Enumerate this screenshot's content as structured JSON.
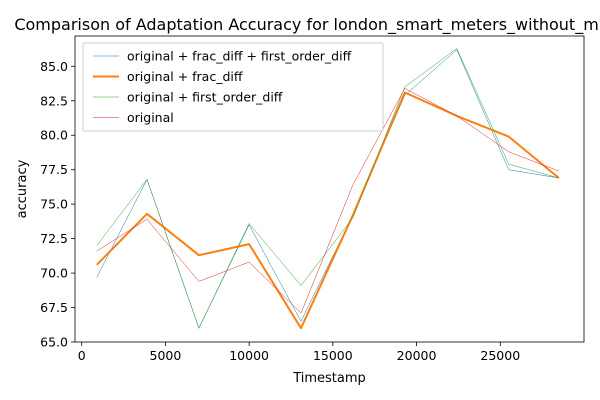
{
  "chart_data": {
    "type": "line",
    "title": "Comparison of Adaptation Accuracy for london_smart_meters_without_missing",
    "xlabel": "Timestamp",
    "ylabel": "accuracy",
    "xlim": [
      -400,
      30000
    ],
    "ylim": [
      65.0,
      87.2
    ],
    "xticks": [
      0,
      5000,
      10000,
      15000,
      20000,
      25000
    ],
    "yticks": [
      65.0,
      67.5,
      70.0,
      72.5,
      75.0,
      77.5,
      80.0,
      82.5,
      85.0
    ],
    "grid": false,
    "legend_position": "top-left",
    "x": [
      900,
      3900,
      7000,
      10000,
      13100,
      16200,
      19300,
      22400,
      25500,
      28500
    ],
    "series": [
      {
        "name": "original + frac_diff + first_order_diff",
        "color": "#1f77b4",
        "width": 0.5,
        "values": [
          69.7,
          76.8,
          66.0,
          73.5,
          66.5,
          74.2,
          82.9,
          86.2,
          77.5,
          76.9
        ]
      },
      {
        "name": "original + frac_diff",
        "color": "#ff7f0e",
        "width": 2,
        "values": [
          70.6,
          74.3,
          71.3,
          72.1,
          66.0,
          74.2,
          83.1,
          81.4,
          79.9,
          76.9
        ]
      },
      {
        "name": "original + first_order_diff",
        "color": "#2ca02c",
        "width": 0.5,
        "values": [
          72.0,
          76.8,
          66.0,
          73.6,
          69.1,
          74.0,
          83.5,
          86.3,
          77.9,
          76.9
        ]
      },
      {
        "name": "original",
        "color": "#d62728",
        "width": 0.5,
        "values": [
          71.6,
          73.9,
          69.4,
          70.8,
          67.1,
          76.4,
          83.4,
          81.4,
          78.8,
          77.4
        ]
      }
    ]
  }
}
